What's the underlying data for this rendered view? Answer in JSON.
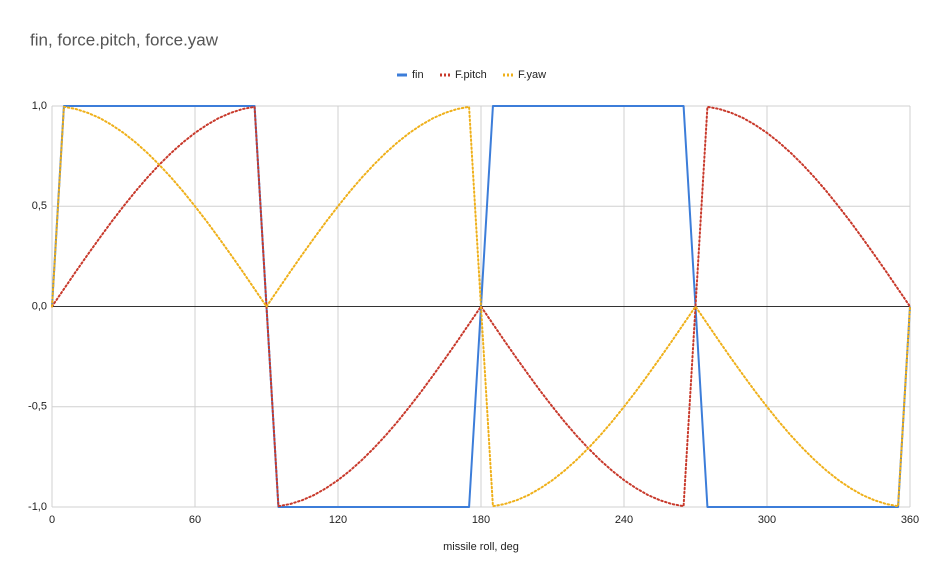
{
  "chart_data": {
    "type": "line",
    "title": "fin, force.pitch, force.yaw",
    "x_label": "missile roll, deg",
    "x": [
      0,
      5,
      10,
      15,
      20,
      25,
      30,
      35,
      40,
      45,
      50,
      55,
      60,
      65,
      70,
      75,
      80,
      85,
      90,
      95,
      100,
      105,
      110,
      115,
      120,
      125,
      130,
      135,
      140,
      145,
      150,
      155,
      160,
      165,
      170,
      175,
      180,
      185,
      190,
      195,
      200,
      205,
      210,
      215,
      220,
      225,
      230,
      235,
      240,
      245,
      250,
      255,
      260,
      265,
      270,
      275,
      280,
      285,
      290,
      295,
      300,
      305,
      310,
      315,
      320,
      325,
      330,
      335,
      340,
      345,
      350,
      355,
      360
    ],
    "series": [
      {
        "name": "fin",
        "color": "#3c7dd9",
        "dash": false,
        "values": [
          0,
          1,
          1,
          1,
          1,
          1,
          1,
          1,
          1,
          1,
          1,
          1,
          1,
          1,
          1,
          1,
          1,
          1,
          0,
          -1,
          -1,
          -1,
          -1,
          -1,
          -1,
          -1,
          -1,
          -1,
          -1,
          -1,
          -1,
          -1,
          -1,
          -1,
          -1,
          -1,
          0,
          1,
          1,
          1,
          1,
          1,
          1,
          1,
          1,
          1,
          1,
          1,
          1,
          1,
          1,
          1,
          1,
          1,
          0,
          -1,
          -1,
          -1,
          -1,
          -1,
          -1,
          -1,
          -1,
          -1,
          -1,
          -1,
          -1,
          -1,
          -1,
          -1,
          -1,
          -1,
          0
        ]
      },
      {
        "name": "F.pitch",
        "color": "#c8392b",
        "dash": true,
        "values": [
          0,
          0.087,
          0.174,
          0.259,
          0.342,
          0.423,
          0.5,
          0.574,
          0.643,
          0.707,
          0.766,
          0.819,
          0.866,
          0.906,
          0.94,
          0.966,
          0.985,
          0.996,
          0,
          -0.996,
          -0.985,
          -0.966,
          -0.94,
          -0.906,
          -0.866,
          -0.819,
          -0.766,
          -0.707,
          -0.643,
          -0.574,
          -0.5,
          -0.423,
          -0.342,
          -0.259,
          -0.174,
          -0.087,
          0,
          -0.087,
          -0.174,
          -0.259,
          -0.342,
          -0.423,
          -0.5,
          -0.574,
          -0.643,
          -0.707,
          -0.766,
          -0.819,
          -0.866,
          -0.906,
          -0.94,
          -0.966,
          -0.985,
          -0.996,
          0,
          0.996,
          0.985,
          0.966,
          0.94,
          0.906,
          0.866,
          0.819,
          0.766,
          0.707,
          0.643,
          0.574,
          0.5,
          0.423,
          0.342,
          0.259,
          0.174,
          0.087,
          0
        ]
      },
      {
        "name": "F.yaw",
        "color": "#efb01a",
        "dash": true,
        "values": [
          0,
          0.996,
          0.985,
          0.966,
          0.94,
          0.906,
          0.866,
          0.819,
          0.766,
          0.707,
          0.643,
          0.574,
          0.5,
          0.423,
          0.342,
          0.259,
          0.174,
          0.087,
          0,
          0.087,
          0.174,
          0.259,
          0.342,
          0.423,
          0.5,
          0.574,
          0.643,
          0.707,
          0.766,
          0.819,
          0.866,
          0.906,
          0.94,
          0.966,
          0.985,
          0.996,
          0,
          -0.996,
          -0.985,
          -0.966,
          -0.94,
          -0.906,
          -0.866,
          -0.819,
          -0.766,
          -0.707,
          -0.643,
          -0.574,
          -0.5,
          -0.423,
          -0.342,
          -0.259,
          -0.174,
          -0.087,
          0,
          -0.087,
          -0.174,
          -0.259,
          -0.342,
          -0.423,
          -0.5,
          -0.574,
          -0.643,
          -0.707,
          -0.766,
          -0.819,
          -0.866,
          -0.906,
          -0.94,
          -0.966,
          -0.985,
          -0.996,
          0
        ]
      }
    ],
    "xlim": [
      0,
      360
    ],
    "xticks": [
      0,
      60,
      120,
      180,
      240,
      300,
      360
    ],
    "ylim": [
      -1,
      1
    ],
    "yticks": [
      {
        "value": -1,
        "label": "-1,0"
      },
      {
        "value": -0.5,
        "label": "-0,5"
      },
      {
        "value": 0,
        "label": "0,0"
      },
      {
        "value": 0.5,
        "label": "0,5"
      },
      {
        "value": 1,
        "label": "1,0"
      }
    ],
    "grid": true,
    "legend": "top"
  }
}
